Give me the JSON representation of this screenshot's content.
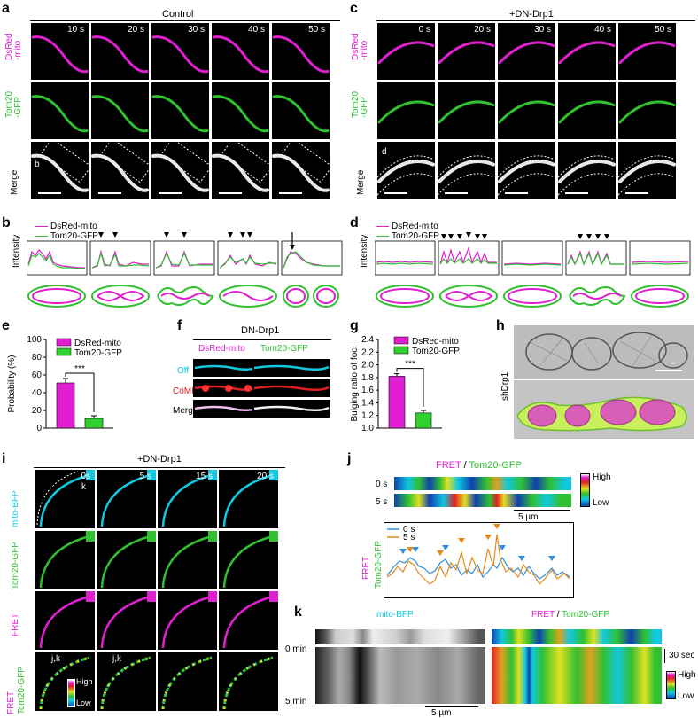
{
  "panels": {
    "a": "a",
    "b": "b",
    "c": "c",
    "d": "d",
    "e": "e",
    "f": "f",
    "g": "g",
    "h": "h",
    "i": "i",
    "j": "j",
    "k": "k"
  },
  "a": {
    "title": "Control",
    "times": [
      "10 s",
      "20 s",
      "30 s",
      "40 s",
      "50 s"
    ],
    "rows": [
      "DsRed\n-mito",
      "Tom20\n-GFP",
      "Merge"
    ],
    "inset": "b"
  },
  "c": {
    "title": "+DN-Drp1",
    "times": [
      "0 s",
      "20 s",
      "30 s",
      "40 s",
      "50 s"
    ],
    "rows": [
      "DsRed\n-mito",
      "Tom20\n-GFP",
      "Merge"
    ],
    "inset": "d"
  },
  "b": {
    "legend": [
      "DsRed-mito",
      "Tom20-GFP"
    ],
    "ylabel": "Intensity"
  },
  "d": {
    "legend": [
      "DsRed-mito",
      "Tom20-GFP"
    ],
    "ylabel": "Intensity"
  },
  "e": {
    "ylabel": "Probability (%)",
    "sig": "***"
  },
  "g": {
    "ylabel": "Bulging ratio of foci",
    "sig": "***"
  },
  "f": {
    "title": "DN-Drp1",
    "cols": [
      "DsRed-mito",
      "Tom20-GFP"
    ],
    "rows": [
      "Off",
      "CoMIC",
      "Merge"
    ]
  },
  "h": {
    "label": "shDrp1"
  },
  "i": {
    "title": "+DN-Drp1",
    "times": [
      "0s",
      "5 s",
      "15 s",
      "20 s"
    ],
    "rows": [
      "mito-BFP",
      "Tom20-GFP",
      "FRET",
      "FRET",
      "Tom20-GFP"
    ],
    "inset": "k",
    "inset2": "j,k",
    "high": "High",
    "low": "Low"
  },
  "j": {
    "title_a": "FRET",
    "title_sep": " / ",
    "title_b": "Tom20-GFP",
    "rows": [
      "0 s",
      "5 s"
    ],
    "high": "High",
    "low": "Low",
    "scale": "5 µm",
    "ylabel_a": "FRET",
    "ylabel_b": "Tom20-GFP",
    "legend": [
      "0 s",
      "5 s"
    ]
  },
  "k": {
    "left_title": "mito-BFP",
    "right_title_a": "FRET",
    "right_title_sep": " / ",
    "right_title_b": "Tom20-GFP",
    "t0": "0 min",
    "t1": "5 min",
    "time_bar": "30 sec",
    "scale": "5 µm",
    "high": "High",
    "low": "Low"
  },
  "colors": {
    "magenta": "#e020d0",
    "green": "#30c030",
    "cyan": "#10c8e0",
    "red": "#e02020"
  },
  "chart_data": [
    {
      "panel": "e",
      "type": "bar",
      "categories": [
        "DsRed-mito",
        "Tom20-GFP"
      ],
      "values": [
        51,
        11
      ],
      "errors": [
        5,
        3
      ],
      "ylabel": "Probability (%)",
      "ylim": [
        0,
        100
      ],
      "yticks": [
        0,
        20,
        40,
        60,
        80,
        100
      ],
      "colors": [
        "#e020d0",
        "#30d030"
      ],
      "legend": [
        "DsRed-mito",
        "Tom20-GFP"
      ]
    },
    {
      "panel": "g",
      "type": "bar",
      "categories": [
        "DsRed-mito",
        "Tom20-GFP"
      ],
      "values": [
        1.82,
        1.24
      ],
      "errors": [
        0.04,
        0.04
      ],
      "ylabel": "Bulging ratio of foci",
      "ylim": [
        1.0,
        2.4
      ],
      "yticks": [
        "1.0",
        "1.2",
        "1.4",
        "1.6",
        "1.8",
        "2.0",
        "2.2",
        "2.4"
      ],
      "colors": [
        "#e020d0",
        "#30d030"
      ],
      "legend": [
        "DsRed-mito",
        "Tom20-GFP"
      ]
    }
  ]
}
